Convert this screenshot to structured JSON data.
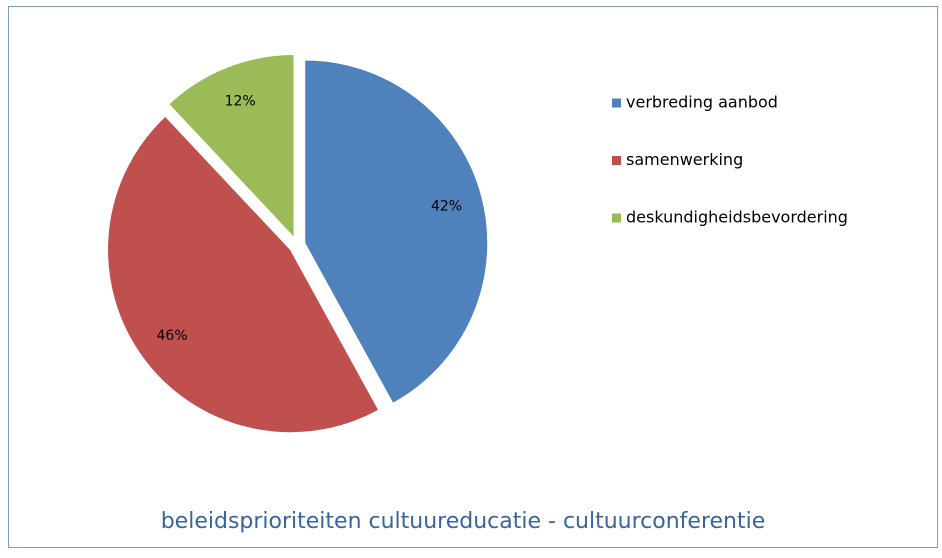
{
  "chart_data": {
    "type": "pie",
    "title": "beleidsprioriteiten cultuureducatie - cultuurconferentie",
    "categories": [
      "verbreding aanbod",
      "samenwerking",
      "deskundigheidsbevordering"
    ],
    "values": [
      42,
      46,
      12
    ],
    "value_labels": [
      "42%",
      "46%",
      "12%"
    ],
    "colors": [
      "#4f81bd",
      "#c0504d",
      "#9bbb59"
    ],
    "legend": "right"
  }
}
